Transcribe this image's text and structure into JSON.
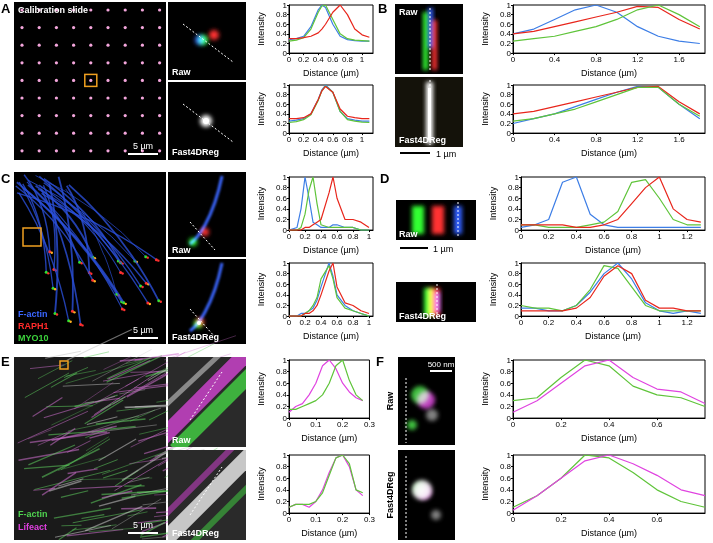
{
  "panels": [
    {
      "letter": "A",
      "title": "Calibration slide",
      "scale_bar": "5 µm",
      "views": [
        "Raw",
        "Fast4DReg"
      ]
    },
    {
      "letter": "B",
      "scale_bar": "1 µm",
      "views": [
        "Raw",
        "Fast4DReg"
      ]
    },
    {
      "letter": "C",
      "scale_bar": "5 µm",
      "views": [
        "Raw",
        "Fast4DReg"
      ],
      "channels": [
        {
          "name": "F-actin",
          "color": "#3a66ff"
        },
        {
          "name": "RAPH1",
          "color": "#ff2a2a"
        },
        {
          "name": "MYO10",
          "color": "#3cd23c"
        }
      ]
    },
    {
      "letter": "D",
      "scale_bar": "1 µm",
      "views": [
        "Raw",
        "Fast4DReg"
      ]
    },
    {
      "letter": "E",
      "scale_bar": "5 µm",
      "views": [
        "Raw",
        "Fast4DReg"
      ],
      "channels": [
        {
          "name": "F-actin",
          "color": "#4fd24f"
        },
        {
          "name": "Lifeact",
          "color": "#e040e0"
        }
      ]
    },
    {
      "letter": "F",
      "scale_bar": "500 nm",
      "views": [
        "Raw",
        "Fast4DReg"
      ]
    }
  ],
  "chart_data": [
    {
      "type": "line",
      "xlabel": "Distance (µm)",
      "ylabel": "Intensity",
      "x": [
        0,
        0.1,
        0.2,
        0.3,
        0.4,
        0.45,
        0.5,
        0.6,
        0.7,
        0.8,
        0.9,
        1.0,
        1.1
      ],
      "series": [
        {
          "color": "#3d7ee6",
          "values": [
            0.28,
            0.3,
            0.35,
            0.55,
            0.9,
            1.0,
            0.95,
            0.6,
            0.35,
            0.28,
            0.26,
            0.25,
            0.25
          ]
        },
        {
          "color": "#5fc43a",
          "values": [
            0.25,
            0.27,
            0.32,
            0.5,
            0.85,
            0.98,
            1.0,
            0.7,
            0.4,
            0.3,
            0.27,
            0.26,
            0.25
          ]
        },
        {
          "color": "#e8261c",
          "values": [
            0.3,
            0.3,
            0.32,
            0.35,
            0.42,
            0.5,
            0.6,
            0.85,
            1.0,
            0.8,
            0.5,
            0.38,
            0.33
          ]
        }
      ],
      "xlim": [
        0,
        1.15
      ],
      "xticks": [
        0,
        0.2,
        0.4,
        0.6,
        0.8,
        1
      ],
      "ylim": [
        0,
        1
      ],
      "yticks": [
        0,
        0.2,
        0.4,
        0.6,
        0.8,
        1
      ]
    },
    {
      "type": "line",
      "xlabel": "Distance (µm)",
      "ylabel": "Intensity",
      "x": [
        0,
        0.1,
        0.2,
        0.3,
        0.4,
        0.45,
        0.5,
        0.6,
        0.7,
        0.8,
        0.9,
        1.0,
        1.1
      ],
      "series": [
        {
          "color": "#3d7ee6",
          "values": [
            0.25,
            0.27,
            0.3,
            0.4,
            0.7,
            0.9,
            1.0,
            0.85,
            0.45,
            0.3,
            0.27,
            0.25,
            0.25
          ]
        },
        {
          "color": "#5fc43a",
          "values": [
            0.22,
            0.24,
            0.28,
            0.38,
            0.68,
            0.88,
            0.98,
            0.85,
            0.45,
            0.28,
            0.25,
            0.23,
            0.22
          ]
        },
        {
          "color": "#e8261c",
          "values": [
            0.3,
            0.3,
            0.32,
            0.4,
            0.7,
            0.88,
            0.97,
            0.85,
            0.5,
            0.35,
            0.32,
            0.3,
            0.3
          ]
        }
      ],
      "xlim": [
        0,
        1.15
      ],
      "xticks": [
        0,
        0.2,
        0.4,
        0.6,
        0.8,
        1
      ],
      "ylim": [
        0,
        1
      ],
      "yticks": [
        0,
        0.2,
        0.4,
        0.6,
        0.8,
        1
      ]
    },
    {
      "type": "line",
      "xlabel": "Distance (µm)",
      "ylabel": "Intensity",
      "x": [
        0,
        0.2,
        0.4,
        0.6,
        0.8,
        1.0,
        1.2,
        1.4,
        1.6,
        1.8
      ],
      "series": [
        {
          "color": "#3d7ee6",
          "values": [
            0.4,
            0.5,
            0.7,
            0.9,
            1.0,
            0.85,
            0.55,
            0.35,
            0.25,
            0.2
          ]
        },
        {
          "color": "#e8261c",
          "values": [
            0.4,
            0.45,
            0.55,
            0.65,
            0.75,
            0.85,
            0.97,
            0.95,
            0.7,
            0.5
          ]
        },
        {
          "color": "#5fc43a",
          "values": [
            0.25,
            0.3,
            0.35,
            0.45,
            0.55,
            0.7,
            0.9,
            1.0,
            0.8,
            0.55
          ]
        }
      ],
      "xlim": [
        0,
        1.85
      ],
      "xticks": [
        0,
        0.4,
        0.8,
        1.2,
        1.6
      ],
      "ylim": [
        0,
        1
      ],
      "yticks": [
        0,
        0.2,
        0.4,
        0.6,
        0.8,
        1
      ]
    },
    {
      "type": "line",
      "xlabel": "Distance (µm)",
      "ylabel": "Intensity",
      "x": [
        0,
        0.2,
        0.4,
        0.6,
        0.8,
        1.0,
        1.2,
        1.4,
        1.6,
        1.8
      ],
      "series": [
        {
          "color": "#3d7ee6",
          "values": [
            0.2,
            0.3,
            0.4,
            0.55,
            0.7,
            0.85,
            0.97,
            0.95,
            0.6,
            0.3
          ]
        },
        {
          "color": "#e8261c",
          "values": [
            0.4,
            0.45,
            0.55,
            0.65,
            0.75,
            0.85,
            0.95,
            0.97,
            0.65,
            0.4
          ]
        },
        {
          "color": "#5fc43a",
          "values": [
            0.25,
            0.3,
            0.4,
            0.5,
            0.65,
            0.8,
            0.95,
            0.95,
            0.6,
            0.35
          ]
        }
      ],
      "xlim": [
        0,
        1.85
      ],
      "xticks": [
        0,
        0.4,
        0.8,
        1.2,
        1.6
      ],
      "ylim": [
        0,
        1
      ],
      "yticks": [
        0,
        0.2,
        0.4,
        0.6,
        0.8,
        1
      ]
    },
    {
      "type": "line",
      "xlabel": "Distance (µm)",
      "ylabel": "Intensity",
      "x": [
        0,
        0.1,
        0.15,
        0.2,
        0.25,
        0.3,
        0.35,
        0.4,
        0.5,
        0.55,
        0.6,
        0.7,
        0.8,
        0.9,
        1.0
      ],
      "series": [
        {
          "color": "#3d7ee6",
          "values": [
            0,
            0.05,
            0.4,
            1.0,
            0.6,
            0.15,
            0.1,
            0.05,
            0.05,
            0.1,
            0.1,
            0.05,
            0.05,
            0,
            0
          ]
        },
        {
          "color": "#5fc43a",
          "values": [
            0,
            0,
            0.05,
            0.3,
            0.75,
            1.0,
            0.5,
            0.1,
            0.05,
            0.05,
            0.05,
            0.05,
            0.05,
            0,
            0
          ]
        },
        {
          "color": "#e8261c",
          "values": [
            0,
            0,
            0,
            0.05,
            0.05,
            0.1,
            0.15,
            0.2,
            0.7,
            1.0,
            0.6,
            0.2,
            0.2,
            0.15,
            0.05
          ]
        }
      ],
      "xlim": [
        0,
        1.05
      ],
      "xticks": [
        0,
        0.2,
        0.4,
        0.6,
        0.8,
        1
      ],
      "ylim": [
        0,
        1
      ],
      "yticks": [
        0,
        0.2,
        0.4,
        0.6,
        0.8,
        1
      ]
    },
    {
      "type": "line",
      "xlabel": "Distance (µm)",
      "ylabel": "Intensity",
      "x": [
        0,
        0.1,
        0.15,
        0.2,
        0.25,
        0.3,
        0.35,
        0.4,
        0.5,
        0.55,
        0.6,
        0.7,
        0.8,
        0.9,
        1.0
      ],
      "series": [
        {
          "color": "#3d7ee6",
          "values": [
            0,
            0,
            0.05,
            0.05,
            0.1,
            0.15,
            0.3,
            0.55,
            1.0,
            0.75,
            0.4,
            0.2,
            0.1,
            0.05,
            0
          ]
        },
        {
          "color": "#5fc43a",
          "values": [
            0,
            0,
            0,
            0.05,
            0.1,
            0.2,
            0.35,
            0.7,
            0.95,
            0.7,
            0.35,
            0.15,
            0.1,
            0.05,
            0
          ]
        },
        {
          "color": "#e8261c",
          "values": [
            0,
            0,
            0,
            0.05,
            0.05,
            0.1,
            0.2,
            0.4,
            0.85,
            1.0,
            0.55,
            0.25,
            0.2,
            0.1,
            0.05
          ]
        }
      ],
      "xlim": [
        0,
        1.05
      ],
      "xticks": [
        0,
        0.2,
        0.4,
        0.6,
        0.8,
        1
      ],
      "ylim": [
        0,
        1
      ],
      "yticks": [
        0,
        0.2,
        0.4,
        0.6,
        0.8,
        1
      ]
    },
    {
      "type": "line",
      "xlabel": "Distance (µm)",
      "ylabel": "Intensity",
      "x": [
        0,
        0.1,
        0.2,
        0.3,
        0.4,
        0.5,
        0.6,
        0.7,
        0.8,
        0.9,
        1.0,
        1.1,
        1.2,
        1.3
      ],
      "series": [
        {
          "color": "#3d7ee6",
          "values": [
            0.05,
            0.1,
            0.2,
            0.9,
            1.0,
            0.3,
            0.1,
            0.05,
            0.05,
            0.05,
            0.05,
            0.05,
            0.05,
            0.05
          ]
        },
        {
          "color": "#5fc43a",
          "values": [
            0.1,
            0.1,
            0.05,
            0.05,
            0.05,
            0.1,
            0.15,
            0.35,
            0.9,
            0.95,
            0.6,
            0.2,
            0.1,
            0.1
          ]
        },
        {
          "color": "#e8261c",
          "values": [
            0.1,
            0.1,
            0.1,
            0.1,
            0.05,
            0.05,
            0.1,
            0.2,
            0.5,
            0.8,
            1.0,
            0.4,
            0.2,
            0.15
          ]
        }
      ],
      "xlim": [
        0,
        1.33
      ],
      "xticks": [
        0,
        0.2,
        0.4,
        0.6,
        0.8,
        1,
        1.2
      ],
      "ylim": [
        0,
        1
      ],
      "yticks": [
        0,
        0.2,
        0.4,
        0.6,
        0.8,
        1
      ]
    },
    {
      "type": "line",
      "xlabel": "Distance (µm)",
      "ylabel": "Intensity",
      "x": [
        0,
        0.1,
        0.2,
        0.3,
        0.4,
        0.5,
        0.6,
        0.7,
        0.8,
        0.9,
        1.0,
        1.1,
        1.2,
        1.3
      ],
      "series": [
        {
          "color": "#3d7ee6",
          "values": [
            0.15,
            0.15,
            0.1,
            0.1,
            0.2,
            0.45,
            0.8,
            1.0,
            0.7,
            0.25,
            0.1,
            0.05,
            0.1,
            0.05
          ]
        },
        {
          "color": "#5fc43a",
          "values": [
            0.2,
            0.15,
            0.15,
            0.1,
            0.2,
            0.5,
            0.95,
            0.9,
            0.55,
            0.2,
            0.1,
            0.1,
            0.1,
            0.1
          ]
        },
        {
          "color": "#e8261c",
          "values": [
            0.1,
            0.1,
            0.1,
            0.1,
            0.15,
            0.35,
            0.75,
            0.95,
            0.8,
            0.3,
            0.15,
            0.15,
            0.1,
            0.1
          ]
        }
      ],
      "xlim": [
        0,
        1.33
      ],
      "xticks": [
        0,
        0.2,
        0.4,
        0.6,
        0.8,
        1,
        1.2
      ],
      "ylim": [
        0,
        1
      ],
      "yticks": [
        0,
        0.2,
        0.4,
        0.6,
        0.8,
        1
      ]
    },
    {
      "type": "line",
      "xlabel": "Distance (µm)",
      "ylabel": "Intensity",
      "x": [
        0,
        0.025,
        0.05,
        0.075,
        0.1,
        0.125,
        0.15,
        0.175,
        0.2,
        0.225,
        0.25,
        0.275
      ],
      "series": [
        {
          "color": "#e044e0",
          "values": [
            0.1,
            0.2,
            0.25,
            0.4,
            0.6,
            0.9,
            1.0,
            0.85,
            0.6,
            0.45,
            0.35,
            0.3
          ]
        },
        {
          "color": "#5fc43a",
          "values": [
            0.15,
            0.15,
            0.2,
            0.25,
            0.3,
            0.4,
            0.6,
            0.9,
            1.0,
            0.65,
            0.4,
            0.3
          ]
        }
      ],
      "xlim": [
        0,
        0.3
      ],
      "xticks": [
        0,
        0.1,
        0.2,
        0.3
      ],
      "ylim": [
        0,
        1
      ],
      "yticks": [
        0,
        0.2,
        0.4,
        0.6,
        0.8,
        1
      ]
    },
    {
      "type": "line",
      "xlabel": "Distance (µm)",
      "ylabel": "Intensity",
      "x": [
        0,
        0.025,
        0.05,
        0.075,
        0.1,
        0.125,
        0.15,
        0.175,
        0.2,
        0.225,
        0.25,
        0.275
      ],
      "series": [
        {
          "color": "#e044e0",
          "values": [
            0.1,
            0.15,
            0.15,
            0.1,
            0.2,
            0.4,
            0.7,
            0.95,
            1.0,
            0.8,
            0.4,
            0.3
          ]
        },
        {
          "color": "#5fc43a",
          "values": [
            0.1,
            0.15,
            0.15,
            0.15,
            0.2,
            0.35,
            0.65,
            0.95,
            1.0,
            0.85,
            0.4,
            0.35
          ]
        }
      ],
      "xlim": [
        0,
        0.3
      ],
      "xticks": [
        0,
        0.1,
        0.2,
        0.3
      ],
      "ylim": [
        0,
        1
      ],
      "yticks": [
        0,
        0.2,
        0.4,
        0.6,
        0.8,
        1
      ]
    },
    {
      "type": "line",
      "xlabel": "Distance (µm)",
      "ylabel": "Intensity",
      "x": [
        0,
        0.1,
        0.2,
        0.3,
        0.4,
        0.5,
        0.6,
        0.7,
        0.8
      ],
      "series": [
        {
          "color": "#5fc43a",
          "values": [
            0.3,
            0.35,
            0.7,
            1.0,
            0.9,
            0.55,
            0.4,
            0.35,
            0.2
          ]
        },
        {
          "color": "#e044e0",
          "values": [
            0.1,
            0.3,
            0.6,
            0.9,
            1.0,
            0.7,
            0.5,
            0.45,
            0.25
          ]
        }
      ],
      "xlim": [
        0,
        0.8
      ],
      "xticks": [
        0,
        0.2,
        0.4,
        0.6
      ],
      "ylim": [
        0,
        1
      ],
      "yticks": [
        0,
        0.2,
        0.4,
        0.6,
        0.8,
        1
      ]
    },
    {
      "type": "line",
      "xlabel": "Distance (µm)",
      "ylabel": "Intensity",
      "x": [
        0,
        0.1,
        0.2,
        0.3,
        0.4,
        0.5,
        0.6,
        0.7,
        0.8
      ],
      "series": [
        {
          "color": "#5fc43a",
          "values": [
            0.1,
            0.3,
            0.6,
            1.0,
            0.95,
            0.7,
            0.4,
            0.2,
            0.1
          ]
        },
        {
          "color": "#e044e0",
          "values": [
            0.05,
            0.3,
            0.6,
            0.9,
            1.0,
            0.85,
            0.65,
            0.4,
            0.3
          ]
        }
      ],
      "xlim": [
        0,
        0.8
      ],
      "xticks": [
        0,
        0.2,
        0.4,
        0.6
      ],
      "ylim": [
        0,
        1
      ],
      "yticks": [
        0,
        0.2,
        0.4,
        0.6,
        0.8,
        1
      ]
    }
  ]
}
